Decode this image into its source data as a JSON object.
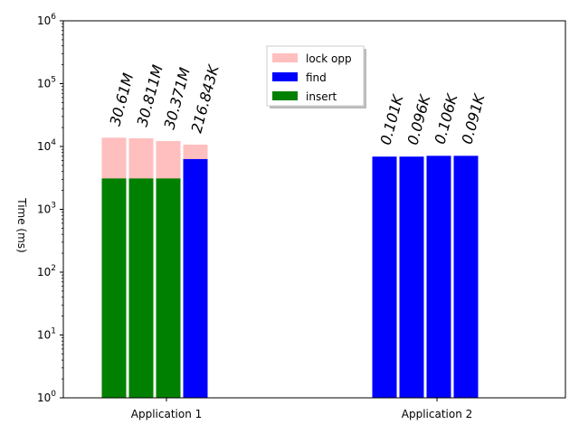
{
  "chart_data": {
    "type": "bar",
    "yscale": "log",
    "ylim": [
      1,
      1000000
    ],
    "ylabel": "Time (ms)",
    "xlabel": "",
    "grid": false,
    "legend_position": "upper-center",
    "legend": [
      "lock opp",
      "find",
      "insert"
    ],
    "colors": {
      "lock opp": "#ffbfbf",
      "find": "#0000ff",
      "insert": "#008000"
    },
    "y_tick_labels": [
      {
        "base": "10",
        "exp": "0",
        "value": 1
      },
      {
        "base": "10",
        "exp": "1",
        "value": 10
      },
      {
        "base": "10",
        "exp": "2",
        "value": 100
      },
      {
        "base": "10",
        "exp": "3",
        "value": 1000
      },
      {
        "base": "10",
        "exp": "4",
        "value": 10000
      },
      {
        "base": "10",
        "exp": "5",
        "value": 100000
      },
      {
        "base": "10",
        "exp": "6",
        "value": 1000000
      }
    ],
    "groups": [
      {
        "name": "Application 1",
        "bars": [
          {
            "annotation": "30.61M",
            "insert": 3100,
            "lock_opp": 13800,
            "find": null
          },
          {
            "annotation": "30.811M",
            "insert": 3100,
            "lock_opp": 13500,
            "find": null
          },
          {
            "annotation": "30.371M",
            "insert": 3100,
            "lock_opp": 12200,
            "find": null
          },
          {
            "annotation": "216.843K",
            "insert": null,
            "lock_opp": 10700,
            "find": 6300
          }
        ]
      },
      {
        "name": "Application 2",
        "bars": [
          {
            "annotation": "0.101K",
            "insert": null,
            "lock_opp": null,
            "find": 6900
          },
          {
            "annotation": "0.096K",
            "insert": null,
            "lock_opp": null,
            "find": 6900
          },
          {
            "annotation": "0.106K",
            "insert": null,
            "lock_opp": null,
            "find": 7100
          },
          {
            "annotation": "0.091K",
            "insert": null,
            "lock_opp": null,
            "find": 7100
          }
        ]
      }
    ]
  }
}
